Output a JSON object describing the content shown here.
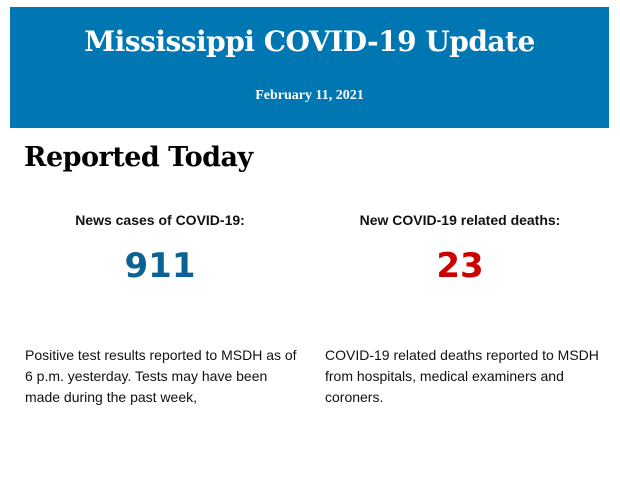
{
  "header": {
    "title": "Mississippi COVID-19 Update",
    "date": "February 11, 2021",
    "color": "#0077b3"
  },
  "section": {
    "title": "Reported Today"
  },
  "cases": {
    "label": "News cases of COVID-19:",
    "value": "911",
    "color": "#0b6394",
    "description": "Positive test results reported to MSDH as of 6 p.m. yesterday. Tests may have been made during the past week,"
  },
  "deaths": {
    "label": "New COVID-19 related deaths:",
    "value": "23",
    "color": "#cc0000",
    "description": "COVID-19 related deaths reported to MSDH from hospitals, medical examiners and coroners."
  }
}
